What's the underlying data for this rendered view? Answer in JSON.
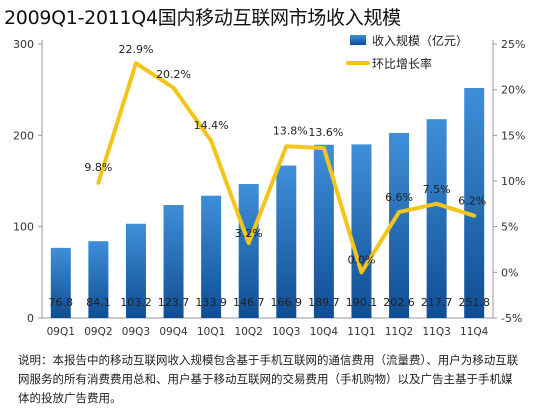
{
  "title": "2009Q1-2011Q4国内移动互联网市场收入规模",
  "note": "说明：本报告中的移动互联网收入规模包含基于手机互联网的通信费用（流量费）、用户为移动互联网服务的所有消费费用总和、用户基于移动互联网的交易费用（手机购物）以及广告主基于手机媒体的投放广告费用。",
  "colors": {
    "bar_top": "#3f8fd8",
    "bar_bottom": "#0f4e94",
    "line": "#f2c518"
  },
  "chart_data": {
    "type": "bar",
    "title": "2009Q1-2011Q4国内移动互联网市场收入规模",
    "categories": [
      "09Q1",
      "09Q2",
      "09Q3",
      "09Q4",
      "10Q1",
      "10Q2",
      "10Q3",
      "10Q4",
      "11Q1",
      "11Q2",
      "11Q3",
      "11Q4"
    ],
    "series": [
      {
        "name": "收入规模（亿元）",
        "type": "bar",
        "axis": "left",
        "values": [
          76.8,
          84.1,
          103.2,
          123.7,
          133.9,
          146.7,
          166.9,
          189.7,
          190.1,
          202.6,
          217.7,
          251.8
        ],
        "labels": [
          "76.8",
          "84.1",
          "103.2",
          "123.7",
          "133.9",
          "146.7",
          "166.9",
          "189.7",
          "190.1",
          "202.6",
          "217.7",
          "251.8"
        ]
      },
      {
        "name": "环比增长率",
        "type": "line",
        "axis": "right",
        "values": [
          null,
          9.8,
          22.9,
          20.2,
          14.4,
          3.2,
          13.8,
          13.6,
          0.0,
          6.6,
          7.5,
          6.2
        ],
        "labels": [
          "",
          "9.8%",
          "22.9%",
          "20.2%",
          "14.4%",
          "3.2%",
          "13.8%",
          "13.6%",
          "0.0%",
          "6.6%",
          "7.5%",
          "6.2%"
        ]
      }
    ],
    "y_left": {
      "range": [
        0,
        300
      ],
      "ticks": [
        "0",
        "100",
        "200",
        "300"
      ]
    },
    "y_right": {
      "range": [
        -5,
        25
      ],
      "ticks": [
        "-5%",
        "0%",
        "5%",
        "10%",
        "15%",
        "20%",
        "25%"
      ]
    },
    "grid": false,
    "legend": "top-right"
  }
}
